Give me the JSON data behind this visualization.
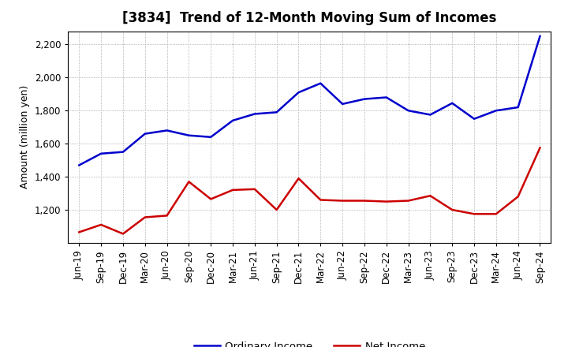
{
  "title": "[3834]  Trend of 12-Month Moving Sum of Incomes",
  "ylabel": "Amount (million yen)",
  "x_labels": [
    "Jun-19",
    "Sep-19",
    "Dec-19",
    "Mar-20",
    "Jun-20",
    "Sep-20",
    "Dec-20",
    "Mar-21",
    "Jun-21",
    "Sep-21",
    "Dec-21",
    "Mar-22",
    "Jun-22",
    "Sep-22",
    "Dec-22",
    "Mar-23",
    "Jun-23",
    "Sep-23",
    "Dec-23",
    "Mar-24",
    "Jun-24",
    "Sep-24"
  ],
  "ordinary_income": [
    1470,
    1540,
    1550,
    1660,
    1680,
    1650,
    1640,
    1740,
    1780,
    1790,
    1910,
    1965,
    1840,
    1870,
    1880,
    1800,
    1775,
    1845,
    1750,
    1800,
    1820,
    2250
  ],
  "net_income": [
    1065,
    1110,
    1055,
    1155,
    1165,
    1370,
    1265,
    1320,
    1325,
    1200,
    1390,
    1260,
    1255,
    1255,
    1250,
    1255,
    1285,
    1200,
    1175,
    1175,
    1280,
    1575
  ],
  "ordinary_color": "#0000cc",
  "net_color": "#cc0000",
  "ylim_min": 1000,
  "ylim_max": 2280,
  "yticks": [
    1200,
    1400,
    1600,
    1800,
    2000,
    2200
  ],
  "background_color": "#ffffff",
  "grid_color": "#999999",
  "title_fontsize": 12,
  "axis_label_fontsize": 9,
  "tick_fontsize": 8.5,
  "legend_fontsize": 9.5
}
